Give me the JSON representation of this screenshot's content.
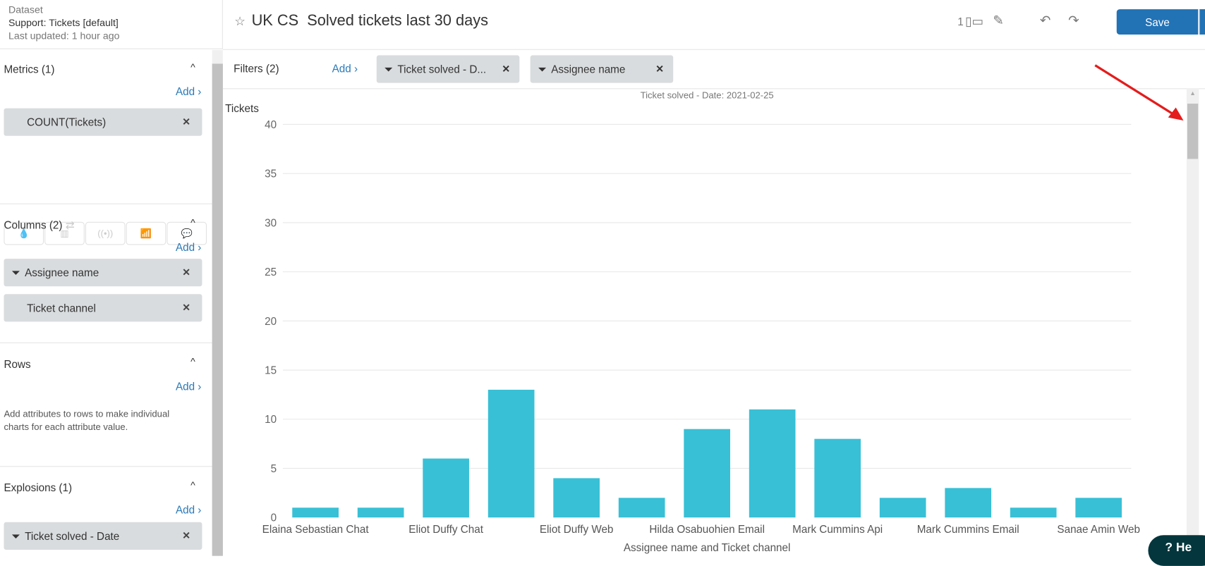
{
  "dataset": {
    "label": "Dataset",
    "name": "Support: Tickets [default]",
    "updated": "Last updated: 1 hour ago"
  },
  "header": {
    "title": "UK CS  Solved tickets last 30 days",
    "layout_count": "1",
    "save": "Save"
  },
  "sidebar": {
    "metrics": {
      "title": "Metrics (1)",
      "add": "Add ›",
      "items": [
        "COUNT(Tickets)"
      ]
    },
    "columns": {
      "title": "Columns (2)",
      "add": "Add ›",
      "items": [
        "Assignee name",
        "Ticket channel"
      ]
    },
    "rows": {
      "title": "Rows",
      "add": "Add ›",
      "help": "Add attributes to rows to make individual charts for each attribute value."
    },
    "explosions": {
      "title": "Explosions (1)",
      "add": "Add ›",
      "items": [
        "Ticket solved - Date"
      ]
    }
  },
  "filters": {
    "title": "Filters (2)",
    "add": "Add ›",
    "items": [
      "Ticket solved - D...",
      "Assignee name"
    ]
  },
  "help_button": "He",
  "chart_data": {
    "type": "bar",
    "title": "Ticket solved - Date: 2021-02-25",
    "ylabel": "Tickets",
    "xlabel": "Assignee name and Ticket channel",
    "ylim": [
      0,
      40
    ],
    "yticks": [
      "0",
      "5",
      "10",
      "15",
      "20",
      "25",
      "30",
      "35",
      "40"
    ],
    "categories": [
      "Elaina Sebastian Chat",
      "",
      "Eliot Duffy Chat",
      "",
      "Eliot Duffy Web",
      "",
      "Hilda Osabuohien Email",
      "",
      "Mark Cummins Api",
      "",
      "Mark Cummins Email",
      "",
      "Sanae Amin Web"
    ],
    "values": [
      1,
      1,
      6,
      13,
      4,
      2,
      9,
      11,
      8,
      2,
      3,
      1,
      2
    ],
    "color": "#38c0d6",
    "grid": true
  }
}
